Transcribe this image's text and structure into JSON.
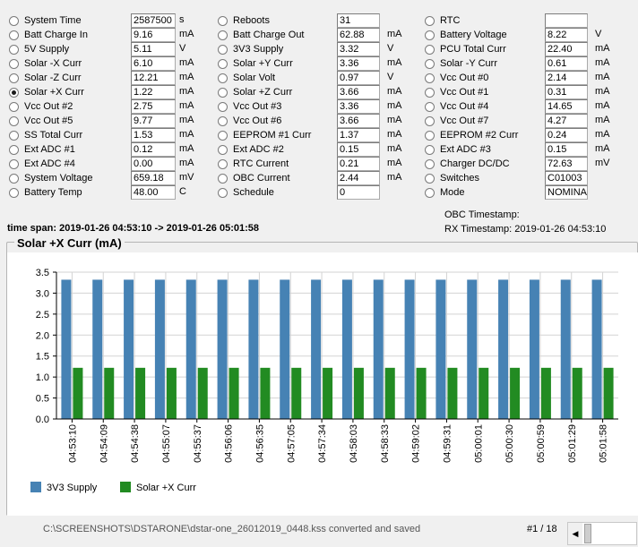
{
  "columns": [
    {
      "rows": [
        {
          "label": "System Time",
          "value": "2587500",
          "unit": "s",
          "selected": false
        },
        {
          "label": "Batt Charge In",
          "value": "9.16",
          "unit": "mA",
          "selected": false
        },
        {
          "label": "5V Supply",
          "value": "5.11",
          "unit": "V",
          "selected": false
        },
        {
          "label": "Solar -X Curr",
          "value": "6.10",
          "unit": "mA",
          "selected": false
        },
        {
          "label": "Solar -Z Curr",
          "value": "12.21",
          "unit": "mA",
          "selected": false
        },
        {
          "label": "Solar +X Curr",
          "value": "1.22",
          "unit": "mA",
          "selected": true
        },
        {
          "label": "Vcc Out #2",
          "value": "2.75",
          "unit": "mA",
          "selected": false
        },
        {
          "label": "Vcc Out #5",
          "value": "9.77",
          "unit": "mA",
          "selected": false
        },
        {
          "label": "SS Total Curr",
          "value": "1.53",
          "unit": "mA",
          "selected": false
        },
        {
          "label": "Ext ADC #1",
          "value": "0.12",
          "unit": "mA",
          "selected": false
        },
        {
          "label": "Ext ADC #4",
          "value": "0.00",
          "unit": "mA",
          "selected": false
        },
        {
          "label": "System Voltage",
          "value": "659.18",
          "unit": "mV",
          "selected": false
        },
        {
          "label": "Battery Temp",
          "value": "48.00",
          "unit": "C",
          "selected": false
        }
      ]
    },
    {
      "rows": [
        {
          "label": "Reboots",
          "value": "31",
          "unit": "",
          "selected": false
        },
        {
          "label": "Batt Charge Out",
          "value": "62.88",
          "unit": "mA",
          "selected": false
        },
        {
          "label": "3V3 Supply",
          "value": "3.32",
          "unit": "V",
          "selected": false
        },
        {
          "label": "Solar +Y Curr",
          "value": "3.36",
          "unit": "mA",
          "selected": false
        },
        {
          "label": "Solar Volt",
          "value": "0.97",
          "unit": "V",
          "selected": false
        },
        {
          "label": "Solar +Z Curr",
          "value": "3.66",
          "unit": "mA",
          "selected": false
        },
        {
          "label": "Vcc Out #3",
          "value": "3.36",
          "unit": "mA",
          "selected": false
        },
        {
          "label": "Vcc Out #6",
          "value": "3.66",
          "unit": "mA",
          "selected": false
        },
        {
          "label": "EEPROM #1 Curr",
          "value": "1.37",
          "unit": "mA",
          "selected": false
        },
        {
          "label": "Ext ADC #2",
          "value": "0.15",
          "unit": "mA",
          "selected": false
        },
        {
          "label": "RTC Current",
          "value": "0.21",
          "unit": "mA",
          "selected": false
        },
        {
          "label": "OBC Current",
          "value": "2.44",
          "unit": "mA",
          "selected": false
        },
        {
          "label": "Schedule",
          "value": "0",
          "unit": "",
          "selected": false
        }
      ]
    },
    {
      "rows": [
        {
          "label": "RTC",
          "value": "",
          "unit": "",
          "selected": false
        },
        {
          "label": "Battery Voltage",
          "value": "8.22",
          "unit": "V",
          "selected": false
        },
        {
          "label": "PCU Total Curr",
          "value": "22.40",
          "unit": "mA",
          "selected": false
        },
        {
          "label": "Solar -Y Curr",
          "value": "0.61",
          "unit": "mA",
          "selected": false
        },
        {
          "label": "Vcc Out #0",
          "value": "2.14",
          "unit": "mA",
          "selected": false
        },
        {
          "label": "Vcc Out #1",
          "value": "0.31",
          "unit": "mA",
          "selected": false
        },
        {
          "label": "Vcc Out #4",
          "value": "14.65",
          "unit": "mA",
          "selected": false
        },
        {
          "label": "Vcc Out #7",
          "value": "4.27",
          "unit": "mA",
          "selected": false
        },
        {
          "label": "EEPROM #2 Curr",
          "value": "0.24",
          "unit": "mA",
          "selected": false
        },
        {
          "label": "Ext ADC #3",
          "value": "0.15",
          "unit": "mA",
          "selected": false
        },
        {
          "label": "Charger DC/DC",
          "value": "72.63",
          "unit": "mV",
          "selected": false
        },
        {
          "label": "Switches",
          "value": "C01003",
          "unit": "",
          "selected": false
        },
        {
          "label": "Mode",
          "value": "NOMINA",
          "unit": "",
          "selected": false
        }
      ]
    }
  ],
  "timespan": {
    "label": "time span:",
    "value": "2019-01-26 04:53:10 -> 2019-01-26 05:01:58"
  },
  "timestamps": {
    "obc_label": "OBC Timestamp:",
    "obc_value": "",
    "rx_label": "RX Timestamp:",
    "rx_value": "2019-01-26 04:53:10"
  },
  "chart_title": "Solar +X Curr (mA)",
  "status_text": "C:\\SCREENSHOTS\\DSTARONE\\dstar-one_26012019_0448.kss converted and saved",
  "pager_text": "#1 / 18",
  "scroll_arrow_icon": "triangle-left",
  "chart_data": {
    "type": "bar",
    "title": "",
    "xlabel": "",
    "ylabel": "",
    "ylim": [
      0,
      3.5
    ],
    "yticks": [
      "0.0",
      "0.5",
      "1.0",
      "1.5",
      "2.0",
      "2.5",
      "3.0",
      "3.5"
    ],
    "grid": true,
    "legend_position": "bottom-left",
    "categories": [
      "04:53:10",
      "04:54:09",
      "04:54:38",
      "04:55:07",
      "04:55:37",
      "04:56:06",
      "04:56:35",
      "04:57:05",
      "04:57:34",
      "04:58:03",
      "04:58:33",
      "04:59:02",
      "04:59:31",
      "05:00:01",
      "05:00:30",
      "05:00:59",
      "05:01:29",
      "05:01:58"
    ],
    "series": [
      {
        "name": "3V3 Supply",
        "color": "#4682b4",
        "values": [
          3.32,
          3.32,
          3.32,
          3.32,
          3.32,
          3.32,
          3.32,
          3.32,
          3.32,
          3.32,
          3.32,
          3.32,
          3.32,
          3.32,
          3.32,
          3.32,
          3.32,
          3.32
        ]
      },
      {
        "name": "Solar +X Curr",
        "color": "#228b22",
        "values": [
          1.22,
          1.22,
          1.22,
          1.22,
          1.22,
          1.22,
          1.22,
          1.22,
          1.22,
          1.22,
          1.22,
          1.22,
          1.22,
          1.22,
          1.22,
          1.22,
          1.22,
          1.22
        ]
      }
    ]
  }
}
